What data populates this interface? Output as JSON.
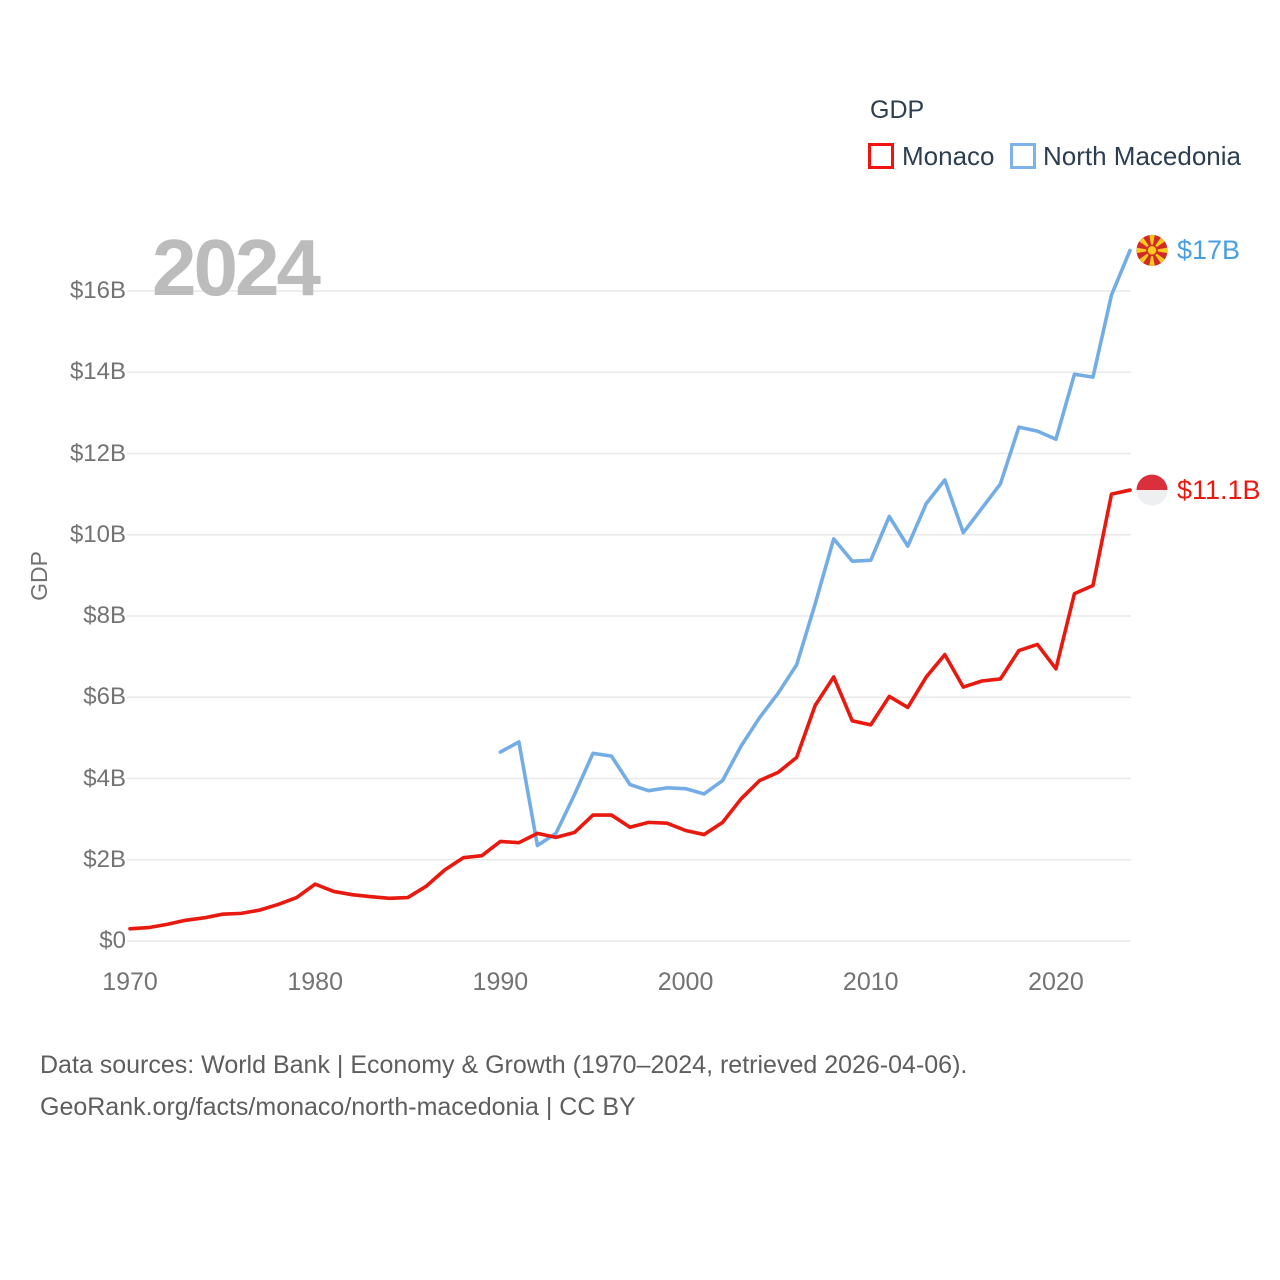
{
  "watermark": "2024",
  "legend": {
    "title": "GDP",
    "items": [
      {
        "label": "Monaco",
        "color": "#e8190f"
      },
      {
        "label": "North Macedonia",
        "color": "#74ade6"
      }
    ]
  },
  "y_axis": {
    "label": "GDP",
    "ticks": [
      "$0",
      "$2B",
      "$4B",
      "$6B",
      "$8B",
      "$10B",
      "$12B",
      "$14B",
      "$16B"
    ]
  },
  "x_axis": {
    "ticks": [
      "1970",
      "1980",
      "1990",
      "2000",
      "2010",
      "2020"
    ]
  },
  "end_labels": {
    "north_macedonia": "$17B",
    "monaco": "$11.1B"
  },
  "footer": {
    "line1": "Data sources: World Bank | Economy & Growth (1970–2024, retrieved 2026-04-06).",
    "line2": "GeoRank.org/facts/monaco/north-macedonia | CC BY"
  },
  "colors": {
    "monaco_line": "#e8190f",
    "north_macedonia_line": "#74ade6",
    "monaco_end_label": "#e8190f",
    "north_macedonia_end_label": "#4a9fe3",
    "gridline": "#e9e9e9",
    "axis_text": "#737373",
    "legend_text": "#2c3e50",
    "watermark": "#bcbcbc",
    "footer_text": "#5e5e5e",
    "nmk_flag_red": "#d22b27",
    "nmk_flag_yellow": "#fbcb1f",
    "monaco_flag_red": "#da2f3d",
    "monaco_flag_white": "#edeff0"
  },
  "chart_data": {
    "type": "line",
    "title": "GDP",
    "ylabel": "GDP",
    "unit": "billions USD",
    "ylim": [
      0,
      17.5
    ],
    "grid": "horizontal",
    "legend_position": "top-right",
    "y_ticks_billions": [
      0,
      2,
      4,
      6,
      8,
      10,
      12,
      14,
      16
    ],
    "x_tick_years": [
      1970,
      1980,
      1990,
      2000,
      2010,
      2020
    ],
    "x": [
      1970,
      1971,
      1972,
      1973,
      1974,
      1975,
      1976,
      1977,
      1978,
      1979,
      1980,
      1981,
      1982,
      1983,
      1984,
      1985,
      1986,
      1987,
      1988,
      1989,
      1990,
      1991,
      1992,
      1993,
      1994,
      1995,
      1996,
      1997,
      1998,
      1999,
      2000,
      2001,
      2002,
      2003,
      2004,
      2005,
      2006,
      2007,
      2008,
      2009,
      2010,
      2011,
      2012,
      2013,
      2014,
      2015,
      2016,
      2017,
      2018,
      2019,
      2020,
      2021,
      2022,
      2023,
      2024
    ],
    "series": [
      {
        "name": "Monaco",
        "color": "#e8190f",
        "end_label": "$11.1B",
        "values": [
          0.3,
          0.33,
          0.41,
          0.51,
          0.57,
          0.66,
          0.68,
          0.76,
          0.9,
          1.07,
          1.4,
          1.22,
          1.14,
          1.09,
          1.05,
          1.07,
          1.35,
          1.75,
          2.05,
          2.1,
          2.45,
          2.42,
          2.65,
          2.55,
          2.67,
          3.1,
          3.1,
          2.8,
          2.92,
          2.9,
          2.72,
          2.62,
          2.92,
          3.5,
          3.95,
          4.15,
          4.52,
          5.8,
          6.5,
          5.42,
          5.32,
          6.02,
          5.75,
          6.5,
          7.05,
          6.25,
          6.4,
          6.45,
          7.15,
          7.3,
          6.7,
          8.55,
          8.75,
          11.0,
          11.1
        ]
      },
      {
        "name": "North Macedonia",
        "color": "#74ade6",
        "end_label": "$17B",
        "values": [
          null,
          null,
          null,
          null,
          null,
          null,
          null,
          null,
          null,
          null,
          null,
          null,
          null,
          null,
          null,
          null,
          null,
          null,
          null,
          null,
          4.65,
          4.9,
          2.35,
          2.65,
          3.6,
          4.62,
          4.55,
          3.85,
          3.7,
          3.77,
          3.75,
          3.62,
          3.95,
          4.8,
          5.5,
          6.1,
          6.8,
          8.3,
          9.9,
          9.35,
          9.37,
          10.45,
          9.72,
          10.77,
          11.35,
          10.05,
          10.65,
          11.25,
          12.65,
          12.55,
          12.35,
          13.95,
          13.88,
          15.9,
          17.0
        ]
      }
    ]
  }
}
